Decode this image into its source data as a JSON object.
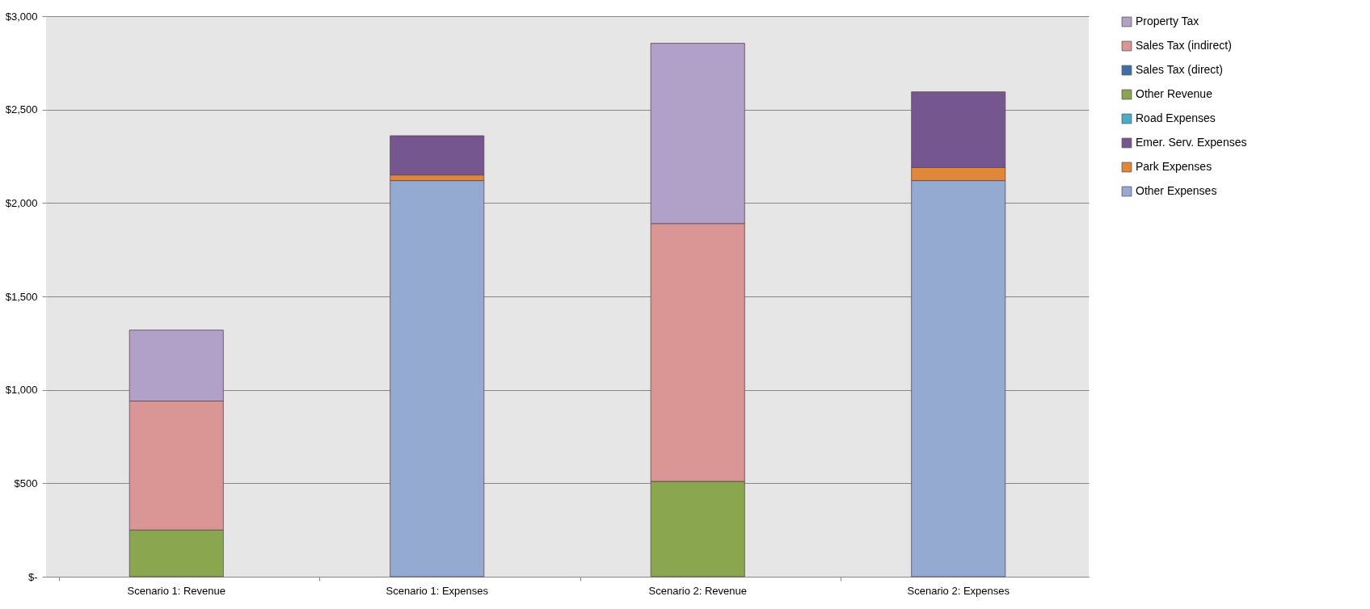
{
  "chart_data": {
    "type": "bar",
    "stacked": true,
    "categories": [
      "Scenario 1: Revenue",
      "Scenario 1: Expenses",
      "Scenario 2: Revenue",
      "Scenario 2: Expenses"
    ],
    "series": [
      {
        "name": "Other Expenses",
        "color": "#95aad1",
        "values": [
          null,
          2120,
          null,
          2120
        ]
      },
      {
        "name": "Park Expenses",
        "color": "#e0873a",
        "values": [
          null,
          30,
          null,
          70
        ]
      },
      {
        "name": "Emer. Serv. Expenses",
        "color": "#76568f",
        "values": [
          null,
          210,
          null,
          405
        ]
      },
      {
        "name": "Road Expenses",
        "color": "#4bacc6",
        "values": [
          null,
          0,
          null,
          0
        ]
      },
      {
        "name": "Other Revenue",
        "color": "#8aa64f",
        "values": [
          250,
          null,
          510,
          null
        ]
      },
      {
        "name": "Sales Tax (direct)",
        "color": "#3f6fa6",
        "values": [
          0,
          null,
          0,
          null
        ]
      },
      {
        "name": "Sales Tax (indirect)",
        "color": "#d99694",
        "values": [
          690,
          null,
          1380,
          null
        ]
      },
      {
        "name": "Property Tax",
        "color": "#b1a0c7",
        "values": [
          380,
          null,
          965,
          null
        ]
      }
    ],
    "ylim": [
      0,
      3000
    ],
    "yticks": [
      {
        "value": 0,
        "label": "$-"
      },
      {
        "value": 500,
        "label": "$500"
      },
      {
        "value": 1000,
        "label": "$1,000"
      },
      {
        "value": 1500,
        "label": "$1,500"
      },
      {
        "value": 2000,
        "label": "$2,000"
      },
      {
        "value": 2500,
        "label": "$2,500"
      },
      {
        "value": 3000,
        "label": "$3,000"
      }
    ],
    "grid": "y",
    "legend": "right"
  }
}
